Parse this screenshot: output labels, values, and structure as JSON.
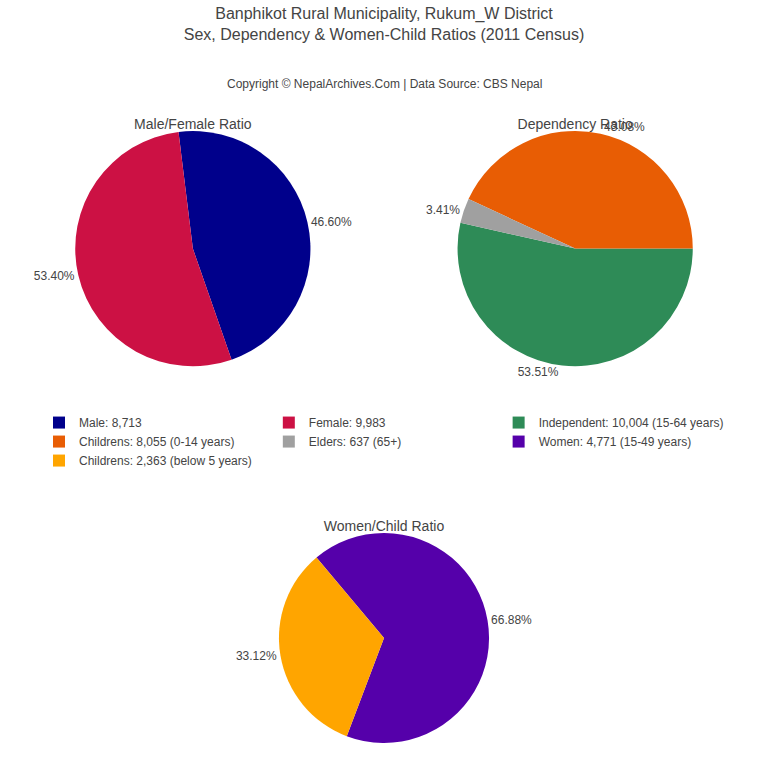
{
  "title": "Banphikot Rural Municipality, Rukum_W District",
  "subtitle": "Sex, Dependency & Women-Child Ratios (2011 Census)",
  "annotations": [
    "Copyright © NepalArchives.Com | Data Source: CBS Nepal"
  ],
  "chart_data": [
    {
      "type": "pie",
      "title": "Male/Female Ratio",
      "categories": [
        "Male: 8,713",
        "Female: 9,983"
      ],
      "values": [
        46.6,
        53.4
      ],
      "value_labels": [
        "46.60%",
        "53.40%"
      ],
      "colors": [
        "#00008B",
        "#CC1144"
      ],
      "data_labels": true,
      "legend": "center"
    },
    {
      "type": "pie",
      "title": "Dependency Ratio",
      "categories": [
        "Independent: 10,004 (15-64 years)",
        "Childrens: 8,055 (0-14 years)",
        "Elders: 637 (65+)"
      ],
      "values": [
        53.51,
        43.08,
        3.41
      ],
      "value_labels": [
        "53.51%",
        "43.08%",
        "3.41%"
      ],
      "colors": [
        "#2E8B57",
        "#E85D04",
        "#A0A0A0"
      ],
      "data_labels": true,
      "legend": "center"
    },
    {
      "type": "pie",
      "title": "Women/Child Ratio",
      "categories": [
        "Women: 4,771 (15-49 years)",
        "Childrens: 2,363 (below 5 years)"
      ],
      "values": [
        66.88,
        33.12
      ],
      "value_labels": [
        "66.88%",
        "33.12%"
      ],
      "colors": [
        "#5500AA",
        "#FFA500"
      ],
      "data_labels": true,
      "legend": "center"
    }
  ]
}
